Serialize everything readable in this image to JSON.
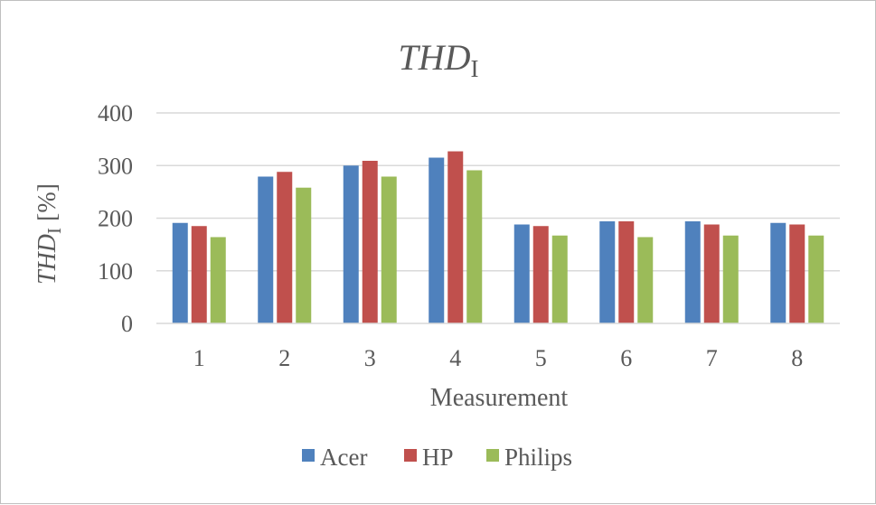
{
  "chart_data": {
    "type": "bar",
    "title": {
      "main": "THD",
      "sub": "I"
    },
    "ylabel": {
      "main": "THD",
      "sub": "I",
      "rest": " [%]"
    },
    "xlabel": "Measurement",
    "categories": [
      "1",
      "2",
      "3",
      "4",
      "5",
      "6",
      "7",
      "8"
    ],
    "ylim": [
      0,
      400
    ],
    "yticks": [
      "0",
      "100",
      "200",
      "300",
      "400"
    ],
    "grid": true,
    "legend_position": "bottom",
    "series": [
      {
        "name": "Acer",
        "color": "#4f81bd",
        "values": [
          191,
          279,
          300,
          315,
          188,
          194,
          194,
          191
        ]
      },
      {
        "name": "HP",
        "color": "#c0504d",
        "values": [
          185,
          288,
          309,
          327,
          185,
          194,
          188,
          188
        ]
      },
      {
        "name": "Philips",
        "color": "#9bbb59",
        "values": [
          164,
          258,
          279,
          291,
          167,
          164,
          167,
          167
        ]
      }
    ]
  }
}
